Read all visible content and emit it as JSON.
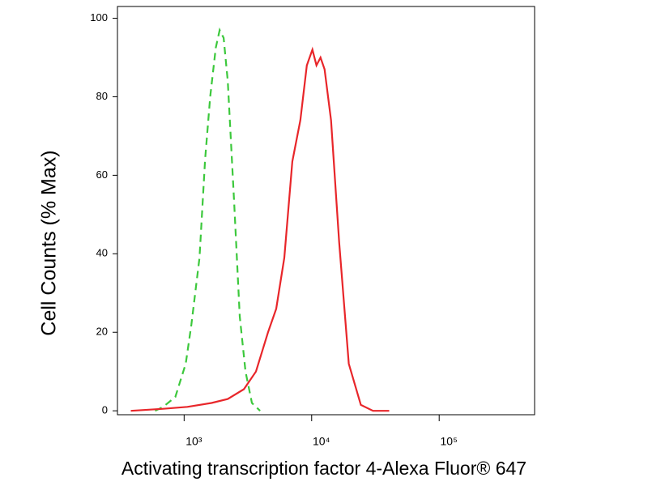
{
  "chart_data": {
    "type": "line",
    "y_label": "Cell Counts (% Max)",
    "x_label": "Activating transcription factor 4-Alexa Fluor® 647",
    "xscale": "log",
    "xlim": [
      300,
      560000
    ],
    "xticks": [
      {
        "value": 1000,
        "label": "10³"
      },
      {
        "value": 10000,
        "label": "10⁴"
      },
      {
        "value": 100000,
        "label": "10⁵"
      }
    ],
    "ylim": [
      -1,
      103
    ],
    "yticks": [
      0,
      20,
      40,
      60,
      80,
      100
    ],
    "series": [
      {
        "color": "#3cc83c",
        "dashed": true,
        "x": [
          592,
          684,
          852,
          1030,
          1140,
          1320,
          1460,
          1600,
          1770,
          1900,
          2040,
          2200,
          2470,
          2730,
          3030,
          3400,
          3940
        ],
        "values": [
          0,
          1,
          3.5,
          12,
          22,
          39,
          64,
          80,
          92.5,
          97,
          95,
          84,
          53,
          24,
          10,
          2,
          0
        ]
      },
      {
        "color": "#e8262a",
        "dashed": false,
        "x": [
          382,
          684,
          1060,
          1640,
          2200,
          2940,
          3660,
          4550,
          5270,
          6100,
          7050,
          8150,
          9160,
          10140,
          10910,
          11740,
          12630,
          14190,
          16420,
          19550,
          24320,
          30270,
          40550
        ],
        "values": [
          0,
          0.5,
          1,
          2,
          3,
          5.5,
          10,
          20,
          26,
          39,
          63.5,
          74,
          88,
          92,
          88,
          90,
          87,
          74,
          43,
          12,
          1.5,
          0,
          0
        ]
      }
    ]
  }
}
